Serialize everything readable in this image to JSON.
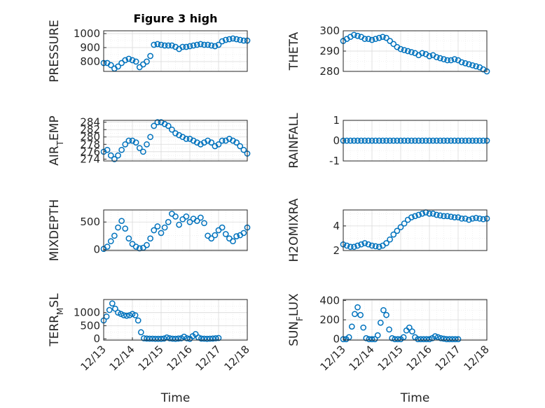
{
  "figure_title": "Figure 3 high",
  "colors": {
    "series": "#0072BD",
    "axes": "#262626",
    "grid": "#d9d9d9"
  },
  "chart_data": [
    {
      "id": "pressure",
      "type": "scatter",
      "title": "Figure 3 high",
      "ylabel": "PRESSURE",
      "ylabel_parts": [
        [
          "PRESSURE",
          ""
        ]
      ],
      "xlabel": "",
      "xlim": [
        0,
        4
      ],
      "ylim": [
        730,
        1020
      ],
      "yticks": [
        800,
        900,
        1000
      ],
      "xticks": [],
      "xtick_labels": [],
      "grid": true,
      "x": [
        0.0,
        0.1,
        0.2,
        0.3,
        0.4,
        0.5,
        0.6,
        0.7,
        0.8,
        0.9,
        1.0,
        1.1,
        1.2,
        1.3,
        1.4,
        1.5,
        1.6,
        1.7,
        1.8,
        1.9,
        2.0,
        2.1,
        2.2,
        2.3,
        2.4,
        2.5,
        2.6,
        2.7,
        2.8,
        2.9,
        3.0,
        3.1,
        3.2,
        3.3,
        3.4,
        3.5,
        3.6,
        3.7,
        3.8,
        3.9,
        4.0
      ],
      "y": [
        790,
        790,
        775,
        750,
        765,
        790,
        810,
        820,
        810,
        800,
        760,
        780,
        800,
        840,
        920,
        925,
        920,
        915,
        915,
        915,
        905,
        890,
        905,
        905,
        910,
        915,
        920,
        925,
        920,
        920,
        915,
        910,
        920,
        945,
        955,
        960,
        965,
        960,
        955,
        950,
        950
      ]
    },
    {
      "id": "theta",
      "type": "scatter",
      "title": "",
      "ylabel": "THETA",
      "ylabel_parts": [
        [
          "THETA",
          ""
        ]
      ],
      "xlabel": "",
      "xlim": [
        0,
        4
      ],
      "ylim": [
        280,
        300
      ],
      "yticks": [
        280,
        290,
        300
      ],
      "xticks": [],
      "xtick_labels": [],
      "grid": true,
      "x": [
        0.0,
        0.1,
        0.2,
        0.3,
        0.4,
        0.5,
        0.6,
        0.7,
        0.8,
        0.9,
        1.0,
        1.1,
        1.2,
        1.3,
        1.4,
        1.5,
        1.6,
        1.7,
        1.8,
        1.9,
        2.0,
        2.1,
        2.2,
        2.3,
        2.4,
        2.5,
        2.6,
        2.7,
        2.8,
        2.9,
        3.0,
        3.1,
        3.2,
        3.3,
        3.4,
        3.5,
        3.6,
        3.7,
        3.8,
        3.9,
        4.0
      ],
      "y": [
        295,
        296,
        297,
        298,
        297.5,
        297,
        296,
        296,
        295.5,
        296,
        296.5,
        297,
        296.5,
        295,
        293.5,
        292,
        291,
        290.5,
        290,
        289.5,
        289,
        288,
        289,
        288.5,
        287.5,
        288,
        287,
        286.5,
        286,
        285.5,
        285.5,
        286,
        285.5,
        284.5,
        284,
        283.5,
        283,
        282.5,
        282,
        281,
        280
      ]
    },
    {
      "id": "air_temp",
      "type": "scatter",
      "title": "",
      "ylabel": "AIR_TEMP",
      "ylabel_parts": [
        [
          "AIR",
          ""
        ],
        [
          "T",
          "sub"
        ],
        [
          "EMP",
          ""
        ]
      ],
      "xlabel": "",
      "xlim": [
        0,
        4
      ],
      "ylim": [
        273.5,
        284.5
      ],
      "yticks": [
        274,
        276,
        278,
        280,
        282,
        284
      ],
      "xticks": [],
      "xtick_labels": [],
      "grid": true,
      "x": [
        0.0,
        0.1,
        0.2,
        0.3,
        0.4,
        0.5,
        0.6,
        0.7,
        0.8,
        0.9,
        1.0,
        1.1,
        1.2,
        1.3,
        1.4,
        1.5,
        1.6,
        1.7,
        1.8,
        1.9,
        2.0,
        2.1,
        2.2,
        2.3,
        2.4,
        2.5,
        2.6,
        2.7,
        2.8,
        2.9,
        3.0,
        3.1,
        3.2,
        3.3,
        3.4,
        3.5,
        3.6,
        3.7,
        3.8,
        3.9,
        4.0
      ],
      "y": [
        276,
        276.5,
        275,
        274,
        275,
        276.5,
        278,
        279,
        279,
        278.5,
        277,
        276,
        278,
        280,
        283,
        284,
        284,
        283.5,
        283,
        282,
        281,
        280.5,
        280,
        279.5,
        279.5,
        279,
        278.5,
        278,
        278.5,
        279,
        278.5,
        277.5,
        278,
        279,
        279,
        279.5,
        279,
        278.5,
        277.5,
        276.5,
        275.5
      ]
    },
    {
      "id": "rainfall",
      "type": "scatter",
      "title": "",
      "ylabel": "RAINFALL",
      "ylabel_parts": [
        [
          "RAINFALL",
          ""
        ]
      ],
      "xlabel": "",
      "xlim": [
        0,
        4
      ],
      "ylim": [
        -1,
        1
      ],
      "yticks": [
        -1,
        0,
        1
      ],
      "xticks": [],
      "xtick_labels": [],
      "grid": true,
      "x": [
        0.0,
        0.1,
        0.2,
        0.3,
        0.4,
        0.5,
        0.6,
        0.7,
        0.8,
        0.9,
        1.0,
        1.1,
        1.2,
        1.3,
        1.4,
        1.5,
        1.6,
        1.7,
        1.8,
        1.9,
        2.0,
        2.1,
        2.2,
        2.3,
        2.4,
        2.5,
        2.6,
        2.7,
        2.8,
        2.9,
        3.0,
        3.1,
        3.2,
        3.3,
        3.4,
        3.5,
        3.6,
        3.7,
        3.8,
        3.9,
        4.0
      ],
      "y": [
        0,
        0,
        0,
        0,
        0,
        0,
        0,
        0,
        0,
        0,
        0,
        0,
        0,
        0,
        0,
        0,
        0,
        0,
        0,
        0,
        0,
        0,
        0,
        0,
        0,
        0,
        0,
        0,
        0,
        0,
        0,
        0,
        0,
        0,
        0,
        0,
        0,
        0,
        0,
        0,
        0
      ]
    },
    {
      "id": "mixdepth",
      "type": "scatter",
      "title": "",
      "ylabel": "MIXDEPTH",
      "ylabel_parts": [
        [
          "MIXDEPTH",
          ""
        ]
      ],
      "xlabel": "",
      "xlim": [
        0,
        4
      ],
      "ylim": [
        -20,
        720
      ],
      "yticks": [
        0,
        500
      ],
      "xticks": [],
      "xtick_labels": [],
      "grid": true,
      "x": [
        0.0,
        0.1,
        0.2,
        0.3,
        0.4,
        0.5,
        0.6,
        0.7,
        0.8,
        0.9,
        1.0,
        1.1,
        1.2,
        1.3,
        1.4,
        1.5,
        1.6,
        1.7,
        1.8,
        1.9,
        2.0,
        2.1,
        2.2,
        2.3,
        2.4,
        2.5,
        2.6,
        2.7,
        2.8,
        2.9,
        3.0,
        3.1,
        3.2,
        3.3,
        3.4,
        3.5,
        3.6,
        3.7,
        3.8,
        3.9,
        4.0
      ],
      "y": [
        10,
        50,
        150,
        250,
        400,
        520,
        380,
        200,
        100,
        50,
        20,
        30,
        80,
        200,
        350,
        420,
        300,
        400,
        500,
        650,
        600,
        450,
        550,
        600,
        500,
        560,
        520,
        580,
        480,
        250,
        200,
        260,
        350,
        400,
        280,
        200,
        150,
        240,
        260,
        300,
        400
      ]
    },
    {
      "id": "h2omixra",
      "type": "scatter",
      "title": "",
      "ylabel": "H2OMIXRA",
      "ylabel_parts": [
        [
          "H2OMIXRA",
          ""
        ]
      ],
      "xlabel": "",
      "xlim": [
        0,
        4
      ],
      "ylim": [
        2,
        5.3
      ],
      "yticks": [
        2,
        4
      ],
      "xticks": [],
      "xtick_labels": [],
      "grid": true,
      "x": [
        0.0,
        0.1,
        0.2,
        0.3,
        0.4,
        0.5,
        0.6,
        0.7,
        0.8,
        0.9,
        1.0,
        1.1,
        1.2,
        1.3,
        1.4,
        1.5,
        1.6,
        1.7,
        1.8,
        1.9,
        2.0,
        2.1,
        2.2,
        2.3,
        2.4,
        2.5,
        2.6,
        2.7,
        2.8,
        2.9,
        3.0,
        3.1,
        3.2,
        3.3,
        3.4,
        3.5,
        3.6,
        3.7,
        3.8,
        3.9,
        4.0
      ],
      "y": [
        2.5,
        2.4,
        2.3,
        2.3,
        2.4,
        2.5,
        2.6,
        2.5,
        2.4,
        2.35,
        2.3,
        2.4,
        2.6,
        2.9,
        3.3,
        3.6,
        3.9,
        4.2,
        4.5,
        4.7,
        4.8,
        4.9,
        5.0,
        5.1,
        5.0,
        5.0,
        4.9,
        4.85,
        4.8,
        4.8,
        4.75,
        4.7,
        4.7,
        4.6,
        4.6,
        4.5,
        4.6,
        4.65,
        4.6,
        4.55,
        4.6
      ]
    },
    {
      "id": "terr_msl",
      "type": "scatter",
      "title": "",
      "ylabel": "TERR_MSL",
      "ylabel_parts": [
        [
          "TERR",
          ""
        ],
        [
          "M",
          "sub"
        ],
        [
          "SL",
          ""
        ]
      ],
      "xlabel": "Time",
      "xlim": [
        0,
        5
      ],
      "ylim": [
        -50,
        1500
      ],
      "yticks": [
        0,
        500,
        1000
      ],
      "xticks": [
        0,
        1,
        2,
        3,
        4,
        5
      ],
      "xtick_labels": [
        "12/13",
        "12/14",
        "12/15",
        "12/16",
        "12/17",
        "12/18"
      ],
      "grid": true,
      "x": [
        0.0,
        0.1,
        0.2,
        0.3,
        0.4,
        0.5,
        0.6,
        0.7,
        0.8,
        0.9,
        1.0,
        1.1,
        1.2,
        1.3,
        1.4,
        1.5,
        1.6,
        1.7,
        1.8,
        1.9,
        2.0,
        2.1,
        2.2,
        2.3,
        2.4,
        2.5,
        2.6,
        2.7,
        2.8,
        2.9,
        3.0,
        3.1,
        3.2,
        3.3,
        3.4,
        3.5,
        3.6,
        3.7,
        3.8,
        3.9,
        4.0
      ],
      "y": [
        700,
        850,
        1100,
        1350,
        1150,
        1000,
        950,
        900,
        880,
        900,
        950,
        900,
        700,
        250,
        20,
        10,
        5,
        5,
        0,
        0,
        0,
        10,
        50,
        20,
        5,
        0,
        10,
        20,
        80,
        20,
        0,
        100,
        180,
        50,
        10,
        5,
        0,
        5,
        10,
        20,
        30
      ]
    },
    {
      "id": "sun_flux",
      "type": "scatter",
      "title": "",
      "ylabel": "SUN_FLUX",
      "ylabel_parts": [
        [
          "SUN",
          ""
        ],
        [
          "F",
          "sub"
        ],
        [
          "LUX",
          ""
        ]
      ],
      "xlabel": "Time",
      "xlim": [
        0,
        5
      ],
      "ylim": [
        -10,
        410
      ],
      "yticks": [
        0,
        200,
        400
      ],
      "xticks": [
        0,
        1,
        2,
        3,
        4,
        5
      ],
      "xtick_labels": [
        "12/13",
        "12/14",
        "12/15",
        "12/16",
        "12/17",
        "12/18"
      ],
      "grid": true,
      "x": [
        0.0,
        0.1,
        0.2,
        0.3,
        0.4,
        0.5,
        0.6,
        0.7,
        0.8,
        0.9,
        1.0,
        1.1,
        1.2,
        1.3,
        1.4,
        1.5,
        1.6,
        1.7,
        1.8,
        1.9,
        2.0,
        2.1,
        2.2,
        2.3,
        2.4,
        2.5,
        2.6,
        2.7,
        2.8,
        2.9,
        3.0,
        3.1,
        3.2,
        3.3,
        3.4,
        3.5,
        3.6,
        3.7,
        3.8,
        3.9,
        4.0
      ],
      "y": [
        0,
        0,
        20,
        130,
        260,
        330,
        250,
        120,
        10,
        0,
        0,
        0,
        40,
        170,
        300,
        250,
        100,
        10,
        0,
        0,
        0,
        20,
        90,
        120,
        80,
        20,
        0,
        0,
        0,
        0,
        0,
        10,
        30,
        20,
        10,
        5,
        0,
        0,
        0,
        0,
        0
      ]
    }
  ]
}
